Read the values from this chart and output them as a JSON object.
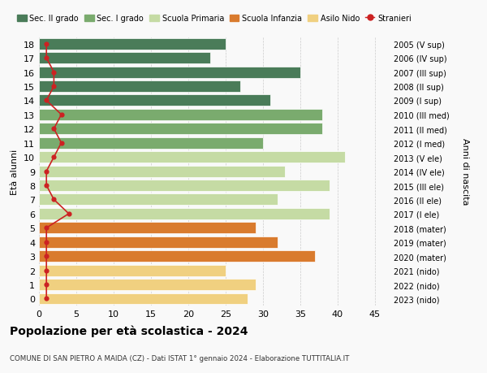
{
  "ages": [
    18,
    17,
    16,
    15,
    14,
    13,
    12,
    11,
    10,
    9,
    8,
    7,
    6,
    5,
    4,
    3,
    2,
    1,
    0
  ],
  "years_labels": [
    "2005 (V sup)",
    "2006 (IV sup)",
    "2007 (III sup)",
    "2008 (II sup)",
    "2009 (I sup)",
    "2010 (III med)",
    "2011 (II med)",
    "2012 (I med)",
    "2013 (V ele)",
    "2014 (IV ele)",
    "2015 (III ele)",
    "2016 (II ele)",
    "2017 (I ele)",
    "2018 (mater)",
    "2019 (mater)",
    "2020 (mater)",
    "2021 (nido)",
    "2022 (nido)",
    "2023 (nido)"
  ],
  "bar_values": [
    25,
    23,
    35,
    27,
    31,
    38,
    38,
    30,
    41,
    33,
    39,
    32,
    39,
    29,
    32,
    37,
    25,
    29,
    28
  ],
  "bar_colors": [
    "#4a7c59",
    "#4a7c59",
    "#4a7c59",
    "#4a7c59",
    "#4a7c59",
    "#7aab6e",
    "#7aab6e",
    "#7aab6e",
    "#c5dba4",
    "#c5dba4",
    "#c5dba4",
    "#c5dba4",
    "#c5dba4",
    "#d97b2e",
    "#d97b2e",
    "#d97b2e",
    "#f0d080",
    "#f0d080",
    "#f0d080"
  ],
  "stranieri_values": [
    1,
    1,
    2,
    2,
    1,
    3,
    2,
    3,
    2,
    1,
    1,
    2,
    4,
    1,
    1,
    1,
    1,
    1,
    1
  ],
  "legend_labels": [
    "Sec. II grado",
    "Sec. I grado",
    "Scuola Primaria",
    "Scuola Infanzia",
    "Asilo Nido",
    "Stranieri"
  ],
  "legend_colors": [
    "#4a7c59",
    "#7aab6e",
    "#c5dba4",
    "#d97b2e",
    "#f0d080",
    "#cc2222"
  ],
  "ylabel_left": "Età alunni",
  "ylabel_right": "Anni di nascita",
  "xlim": [
    0,
    47
  ],
  "xticks": [
    0,
    5,
    10,
    15,
    20,
    25,
    30,
    35,
    40,
    45
  ],
  "title": "Popolazione per età scolastica - 2024",
  "subtitle": "COMUNE DI SAN PIETRO A MAIDA (CZ) - Dati ISTAT 1° gennaio 2024 - Elaborazione TUTTITALIA.IT",
  "bg_color": "#f9f9f9",
  "stranieri_color": "#cc2222",
  "bar_height": 0.8
}
